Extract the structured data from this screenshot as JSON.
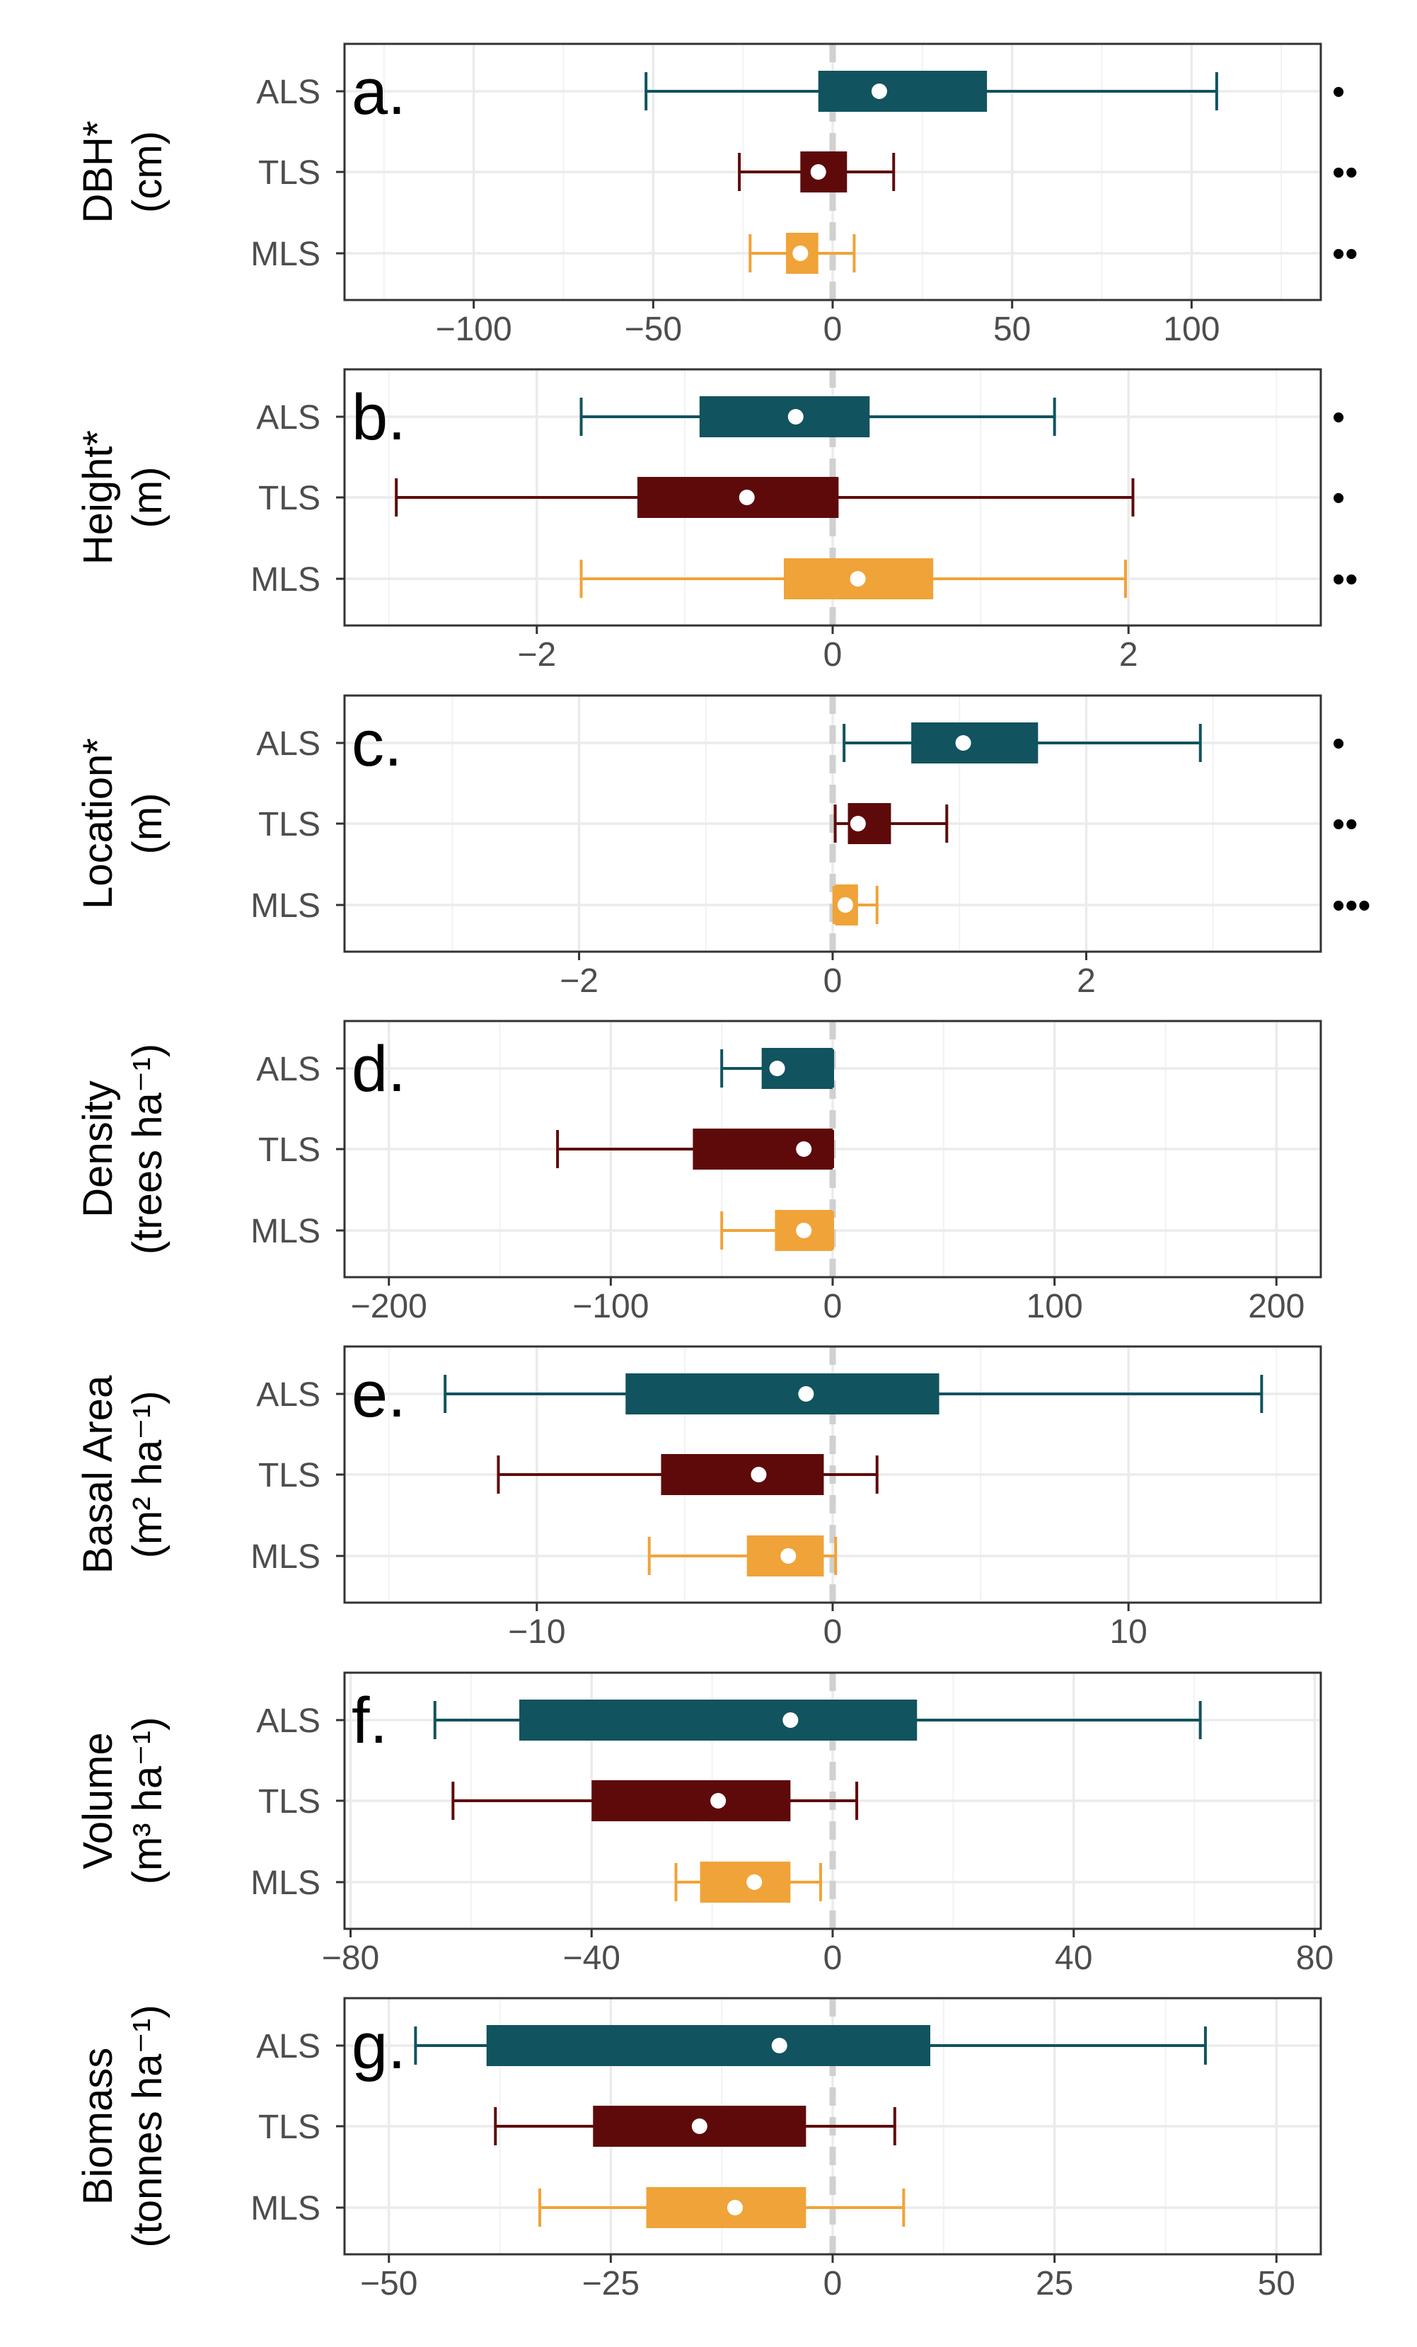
{
  "colors": {
    "ALS": "#11535e",
    "TLS": "#5e0a0a",
    "MLS": "#f0a338",
    "grid": "#ebebeb",
    "zero_line": "#d0d0d0",
    "frame": "#333333"
  },
  "chart_data": [
    {
      "type": "boxplot",
      "panel_label": "a.",
      "ylabel_lines": [
        "DBH*",
        "(cm)"
      ],
      "categories": [
        "ALS",
        "TLS",
        "MLS"
      ],
      "xlim": [
        -136,
        136
      ],
      "xticks": [
        -100,
        -50,
        0,
        50,
        100
      ],
      "xtick_labels": [
        "−100",
        "−50",
        "0",
        "50",
        "100"
      ],
      "series": [
        {
          "name": "ALS",
          "whisker_low": -52,
          "q1": -4,
          "q3": 43,
          "whisker_high": 107,
          "mean": 13,
          "significance": "•"
        },
        {
          "name": "TLS",
          "whisker_low": -26,
          "q1": -9,
          "q3": 4,
          "whisker_high": 17,
          "mean": -4,
          "significance": "••"
        },
        {
          "name": "MLS",
          "whisker_low": -23,
          "q1": -13,
          "q3": -4,
          "whisker_high": 6,
          "mean": -9,
          "significance": "••"
        }
      ]
    },
    {
      "type": "boxplot",
      "panel_label": "b.",
      "ylabel_lines": [
        "Height*",
        "(m)"
      ],
      "categories": [
        "ALS",
        "TLS",
        "MLS"
      ],
      "xlim": [
        -3.3,
        3.3
      ],
      "xticks": [
        -2,
        0,
        2
      ],
      "xtick_labels": [
        "−2",
        "0",
        "2"
      ],
      "series": [
        {
          "name": "ALS",
          "whisker_low": -1.7,
          "q1": -0.9,
          "q3": 0.25,
          "whisker_high": 1.5,
          "mean": -0.25,
          "significance": "•"
        },
        {
          "name": "TLS",
          "whisker_low": -2.95,
          "q1": -1.32,
          "q3": 0.04,
          "whisker_high": 2.03,
          "mean": -0.58,
          "significance": "•"
        },
        {
          "name": "MLS",
          "whisker_low": -1.7,
          "q1": -0.33,
          "q3": 0.68,
          "whisker_high": 1.98,
          "mean": 0.17,
          "significance": "••"
        }
      ]
    },
    {
      "type": "boxplot",
      "panel_label": "c.",
      "ylabel_lines": [
        "Location*",
        "(m)"
      ],
      "categories": [
        "ALS",
        "TLS",
        "MLS"
      ],
      "xlim": [
        -3.85,
        3.85
      ],
      "xticks": [
        -2,
        0,
        2
      ],
      "xtick_labels": [
        "−2",
        "0",
        "2"
      ],
      "series": [
        {
          "name": "ALS",
          "whisker_low": 0.09,
          "q1": 0.62,
          "q3": 1.62,
          "whisker_high": 2.9,
          "mean": 1.03,
          "significance": "•"
        },
        {
          "name": "TLS",
          "whisker_low": 0.02,
          "q1": 0.12,
          "q3": 0.46,
          "whisker_high": 0.9,
          "mean": 0.2,
          "significance": "••"
        },
        {
          "name": "MLS",
          "whisker_low": 0.01,
          "q1": 0.02,
          "q3": 0.2,
          "whisker_high": 0.35,
          "mean": 0.1,
          "significance": "•••"
        }
      ]
    },
    {
      "type": "boxplot",
      "panel_label": "d.",
      "ylabel_lines": [
        "Density",
        "(trees ha⁻¹)"
      ],
      "categories": [
        "ALS",
        "TLS",
        "MLS"
      ],
      "xlim": [
        -220,
        220
      ],
      "xticks": [
        -200,
        -100,
        0,
        100,
        200
      ],
      "xtick_labels": [
        "−200",
        "−100",
        "0",
        "100",
        "200"
      ],
      "series": [
        {
          "name": "ALS",
          "whisker_low": -50,
          "q1": -32,
          "q3": 0,
          "whisker_high": 0,
          "mean": -25,
          "significance": ""
        },
        {
          "name": "TLS",
          "whisker_low": -124,
          "q1": -63,
          "q3": 0,
          "whisker_high": 0,
          "mean": -13,
          "significance": ""
        },
        {
          "name": "MLS",
          "whisker_low": -50,
          "q1": -26,
          "q3": 0,
          "whisker_high": 0,
          "mean": -13,
          "significance": ""
        }
      ]
    },
    {
      "type": "boxplot",
      "panel_label": "e.",
      "ylabel_lines": [
        "Basal Area",
        "(m² ha⁻¹)"
      ],
      "categories": [
        "ALS",
        "TLS",
        "MLS"
      ],
      "xlim": [
        -16.5,
        16.5
      ],
      "xticks": [
        -10,
        0,
        10
      ],
      "xtick_labels": [
        "−10",
        "0",
        "10"
      ],
      "series": [
        {
          "name": "ALS",
          "whisker_low": -13.1,
          "q1": -7.0,
          "q3": 3.6,
          "whisker_high": 14.5,
          "mean": -0.9,
          "significance": ""
        },
        {
          "name": "TLS",
          "whisker_low": -11.3,
          "q1": -5.8,
          "q3": -0.3,
          "whisker_high": 1.5,
          "mean": -2.5,
          "significance": ""
        },
        {
          "name": "MLS",
          "whisker_low": -6.2,
          "q1": -2.9,
          "q3": -0.3,
          "whisker_high": 0.1,
          "mean": -1.5,
          "significance": ""
        }
      ]
    },
    {
      "type": "boxplot",
      "panel_label": "f.",
      "ylabel_lines": [
        "Volume",
        "(m³ ha⁻¹)"
      ],
      "categories": [
        "ALS",
        "TLS",
        "MLS"
      ],
      "xlim": [
        -81,
        81
      ],
      "xticks": [
        -80,
        -40,
        0,
        40,
        80
      ],
      "xtick_labels": [
        "−80",
        "−40",
        "0",
        "40",
        "80"
      ],
      "series": [
        {
          "name": "ALS",
          "whisker_low": -66,
          "q1": -52,
          "q3": 14,
          "whisker_high": 61,
          "mean": -7,
          "significance": ""
        },
        {
          "name": "TLS",
          "whisker_low": -63,
          "q1": -40,
          "q3": -7,
          "whisker_high": 4,
          "mean": -19,
          "significance": ""
        },
        {
          "name": "MLS",
          "whisker_low": -26,
          "q1": -22,
          "q3": -7,
          "whisker_high": -2,
          "mean": -13,
          "significance": ""
        }
      ]
    },
    {
      "type": "boxplot",
      "panel_label": "g.",
      "ylabel_lines": [
        "Biomass",
        "(tonnes ha⁻¹)"
      ],
      "categories": [
        "ALS",
        "TLS",
        "MLS"
      ],
      "xlim": [
        -55,
        55
      ],
      "xticks": [
        -50,
        -25,
        0,
        25,
        50
      ],
      "xtick_labels": [
        "−50",
        "−25",
        "0",
        "25",
        "50"
      ],
      "series": [
        {
          "name": "ALS",
          "whisker_low": -47,
          "q1": -39,
          "q3": 11,
          "whisker_high": 42,
          "mean": -6,
          "significance": ""
        },
        {
          "name": "TLS",
          "whisker_low": -38,
          "q1": -27,
          "q3": -3,
          "whisker_high": 7,
          "mean": -15,
          "significance": ""
        },
        {
          "name": "MLS",
          "whisker_low": -33,
          "q1": -21,
          "q3": -3,
          "whisker_high": 8,
          "mean": -11,
          "significance": ""
        }
      ]
    }
  ]
}
